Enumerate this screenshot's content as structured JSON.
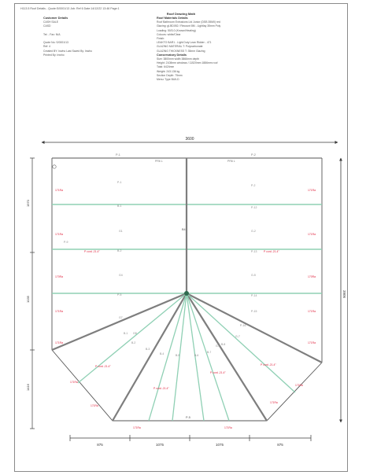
{
  "header": {
    "top_line": "H113.5 Roof Details - Quote:S/0001/13 Job: Ref 6 Date:14/12/22 13:46 Page:1",
    "title": "Roof Drawing Math"
  },
  "customer": {
    "title": "Customer Details",
    "lines": [
      "CASH SALE",
      "CASD",
      "",
      "Tel: - Fax: N/A",
      "",
      "Quote No: S/0001/13",
      "Ref: 4",
      "Created BY: Inwho Last Saved By: Inwho",
      "Printed By: Inwho"
    ]
  },
  "materials": {
    "title": "Roof Materials Details",
    "lines": [
      "Roof Bathroom Extrusions Ltd Junior (DSB 35M0) red",
      "Glazing: gl-BD052 / Recount 8M - Lightlay 35mm Poly",
      "Loading: 50/3-0 (Known/Heating)",
      "Colours: white/Clear",
      "Finish:",
      "LEAKTO BAR1 - Light Duty Lean Ridder - 471",
      "GLAZING MATERIAL T: Polycarbonate",
      "GLAZING THICKNESS T: 35mm Glazing",
      "Conservatory Details",
      "Size: 3800mm width 3866mm depth",
      "Height: 2108mm windows / 11520mm 1886mm roof",
      "Total: 6424mm",
      "Weight: 243.136 kg",
      "Section Depth: 75mm",
      "Menu: Type BUILD"
    ]
  },
  "dimensions": {
    "overall_width": "3600",
    "overall_depth": "3906",
    "left_top": "1970",
    "left_mid": "1035",
    "left_bottom": "1416",
    "bottom_segments": [
      "875",
      "1075",
      "1075",
      "875"
    ]
  },
  "labels": {
    "ridge_left": "P-1",
    "ridge_right": "P-2",
    "ridge_sub_left": "PR6 L",
    "ridge_sub_right": "PR6 L",
    "center": "B4",
    "left_bars": [
      "P-1",
      "B-1",
      "B-2",
      "P-5",
      "P-9"
    ],
    "right_bars": [
      "P-2",
      "P-12",
      "P-13",
      "P-14",
      "P-15",
      "P-16"
    ],
    "left_mid": [
      "G1",
      "G4",
      "G7",
      "G8"
    ],
    "right_mid": [
      "G-2",
      "G-5",
      "G-7",
      "G-9"
    ],
    "bottom_mark": "P-5",
    "fan_labels": [
      "B-1",
      "B-2",
      "B-3",
      "B-4",
      "B-5",
      "B-6",
      "B-7",
      "B-8"
    ],
    "red_left": [
      "171Ra",
      "171Ra",
      "170Ra",
      "171Ra",
      "171Ra"
    ],
    "red_right": [
      "171Ra",
      "171Ra",
      "170Ra",
      "171Ra",
      "171Ra"
    ],
    "red_inner_left": "P cord -21.4°",
    "red_inner_right": "P cord -21.4°",
    "red_fan": [
      "P cord -21.4°",
      "P cord -21.4°",
      "P cord -21.4°",
      "P cord -21.4°"
    ],
    "red_bottom": [
      "171Ra",
      "171Ra",
      "171Ra",
      "171Ra",
      "171Ra",
      "171Ra"
    ]
  },
  "colors": {
    "glazing_bar": "#8fd0b4",
    "rafter": "#7e7e7e",
    "dim_line": "#3a3a3a",
    "red_note": "#e0233d",
    "label": "#777777"
  }
}
